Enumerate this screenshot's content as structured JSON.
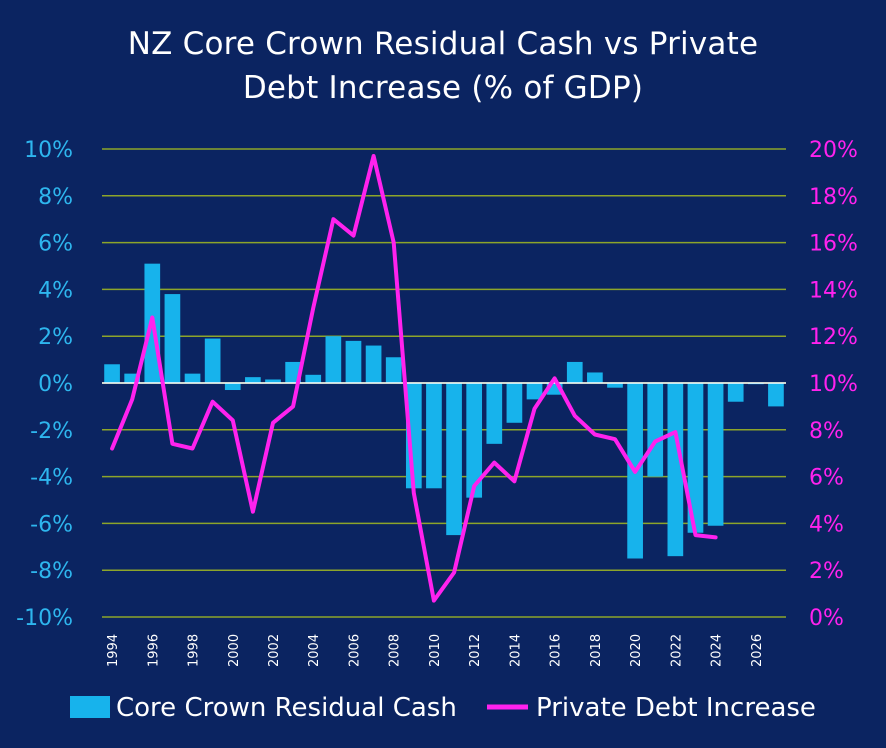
{
  "chart_data": {
    "type": "bar",
    "title_line1": "NZ Core Crown Residual Cash vs Private",
    "title_line2": "Debt Increase (% of GDP)",
    "years": [
      1994,
      1995,
      1996,
      1997,
      1998,
      1999,
      2000,
      2001,
      2002,
      2003,
      2004,
      2005,
      2006,
      2007,
      2008,
      2009,
      2010,
      2011,
      2012,
      2013,
      2014,
      2015,
      2016,
      2017,
      2018,
      2019,
      2020,
      2021,
      2022,
      2023,
      2024,
      2025,
      2026,
      2027
    ],
    "x_tick_labels": [
      "1994",
      "1996",
      "1998",
      "2000",
      "2002",
      "2004",
      "2006",
      "2008",
      "2010",
      "2012",
      "2014",
      "2016",
      "2018",
      "2020",
      "2022",
      "2024",
      "2026"
    ],
    "y_left_ticks": [
      "10%",
      "8%",
      "6%",
      "4%",
      "2%",
      "0%",
      "-2%",
      "-4%",
      "-6%",
      "-8%",
      "-10%"
    ],
    "y_right_ticks": [
      "20%",
      "18%",
      "16%",
      "14%",
      "12%",
      "10%",
      "8%",
      "6%",
      "4%",
      "2%",
      "0%"
    ],
    "y_left_lim": [
      -10,
      10
    ],
    "y_right_lim": [
      0,
      20
    ],
    "series": [
      {
        "name": "Core Crown Residual Cash",
        "type": "bar",
        "axis": "left",
        "color": "#17b3ec",
        "values": [
          0.8,
          0.4,
          5.1,
          3.8,
          0.4,
          1.9,
          -0.3,
          0.25,
          0.15,
          0.9,
          0.35,
          2.0,
          1.8,
          1.6,
          1.1,
          -4.5,
          -4.5,
          -6.5,
          -4.9,
          -2.6,
          -1.7,
          -0.7,
          -0.5,
          0.9,
          0.45,
          -0.2,
          -7.5,
          -4.0,
          -7.4,
          -6.4,
          -6.1,
          -0.8,
          -0.05,
          -1.0
        ]
      },
      {
        "name": "Private Debt Increase",
        "type": "line",
        "axis": "right",
        "color": "#ff22ee",
        "values": [
          7.2,
          9.3,
          12.8,
          7.4,
          7.2,
          9.2,
          8.4,
          4.5,
          8.3,
          9.0,
          13.2,
          17.0,
          16.3,
          19.7,
          16.0,
          5.3,
          0.7,
          1.9,
          5.6,
          6.6,
          5.8,
          8.9,
          10.2,
          8.6,
          7.8,
          7.6,
          6.2,
          7.5,
          7.9,
          3.5,
          3.4,
          null,
          null,
          null
        ]
      }
    ],
    "grid": true,
    "legend_position": "bottom",
    "colors": {
      "background": "#0b2461",
      "grid": "#8da52a",
      "left_axis_text": "#2eb6ee",
      "right_axis_text": "#ff22ee",
      "title_text": "#ffffff",
      "legend_text": "#ffffff"
    }
  }
}
